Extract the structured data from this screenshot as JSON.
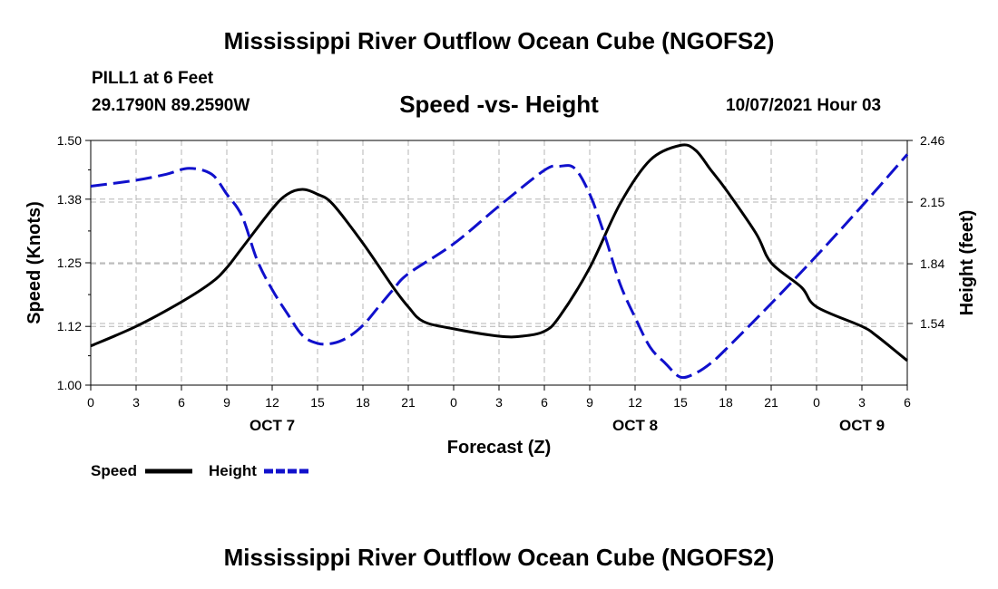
{
  "header": {
    "title_top": "Mississippi River Outflow Ocean Cube (NGOFS2)",
    "station": "PILL1 at 6 Feet",
    "coords": "29.1790N  89.2590W",
    "chart_title": "Speed -vs- Height",
    "datetime": "10/07/2021 Hour 03"
  },
  "footer": {
    "title_bottom": "Mississippi River Outflow Ocean Cube (NGOFS2)"
  },
  "colors": {
    "speed": "#000000",
    "height": "#1010cc",
    "grid": "#b4b4b4"
  },
  "chart_data": {
    "type": "line",
    "title": "Speed -vs- Height",
    "xlabel": "Forecast (Z)",
    "ylabel": "Speed (Knots)",
    "y2label": "Height (feet)",
    "xlim": [
      0,
      54
    ],
    "ylim": [
      1.0,
      1.5
    ],
    "y2lim": [
      1.23,
      2.46
    ],
    "x_ticks": [
      0,
      3,
      6,
      9,
      12,
      15,
      18,
      21,
      24,
      27,
      30,
      33,
      36,
      39,
      42,
      45,
      48,
      51,
      54
    ],
    "x_tick_labels": [
      "0",
      "3",
      "6",
      "9",
      "12",
      "15",
      "18",
      "21",
      "0",
      "3",
      "6",
      "9",
      "12",
      "15",
      "18",
      "21",
      "0",
      "3",
      "6"
    ],
    "y_ticks": [
      1.0,
      1.12,
      1.25,
      1.38,
      1.5
    ],
    "y_tick_labels": [
      "1.00",
      "1.12",
      "1.25",
      "1.38",
      "1.50"
    ],
    "y2_ticks": [
      1.54,
      1.84,
      2.15,
      2.46
    ],
    "y2_tick_labels": [
      "1.54",
      "1.84",
      "2.15",
      "2.46"
    ],
    "date_labels": [
      {
        "x": 12,
        "label": "OCT 7"
      },
      {
        "x": 36,
        "label": "OCT 8"
      },
      {
        "x": 51,
        "label": "OCT 9"
      }
    ],
    "grid": true,
    "legend": [
      {
        "name": "Speed",
        "style": "solid"
      },
      {
        "name": "Height",
        "style": "dashed"
      }
    ],
    "series": [
      {
        "name": "Speed",
        "axis": "left",
        "style": "solid",
        "x": [
          0,
          3,
          6,
          8,
          9,
          10,
          12,
          13,
          14,
          15,
          16,
          18,
          20,
          21,
          22,
          24,
          27,
          28.5,
          30,
          31,
          33,
          35,
          37,
          39,
          40,
          41,
          42,
          44,
          45,
          47,
          48,
          51,
          52,
          54
        ],
        "y": [
          1.08,
          1.12,
          1.17,
          1.21,
          1.24,
          1.28,
          1.36,
          1.39,
          1.4,
          1.39,
          1.37,
          1.29,
          1.2,
          1.16,
          1.13,
          1.115,
          1.1,
          1.1,
          1.11,
          1.14,
          1.24,
          1.37,
          1.46,
          1.49,
          1.48,
          1.44,
          1.4,
          1.31,
          1.25,
          1.2,
          1.16,
          1.12,
          1.1,
          1.05
        ]
      },
      {
        "name": "Height",
        "axis": "right",
        "style": "dashed",
        "x": [
          0,
          3,
          5,
          6.5,
          8,
          9,
          10,
          11,
          12,
          13,
          14,
          15,
          16,
          17,
          18,
          19,
          20,
          21,
          24,
          27,
          30,
          31,
          32,
          33,
          34,
          35,
          36,
          37,
          38,
          39,
          40,
          41,
          42,
          45,
          48,
          51,
          54
        ],
        "y": [
          2.23,
          2.26,
          2.29,
          2.32,
          2.29,
          2.19,
          2.08,
          1.86,
          1.71,
          1.59,
          1.48,
          1.44,
          1.44,
          1.47,
          1.53,
          1.62,
          1.71,
          1.79,
          1.94,
          2.13,
          2.31,
          2.33,
          2.32,
          2.19,
          1.98,
          1.74,
          1.57,
          1.42,
          1.34,
          1.27,
          1.29,
          1.34,
          1.41,
          1.64,
          1.88,
          2.13,
          2.39
        ]
      }
    ]
  }
}
